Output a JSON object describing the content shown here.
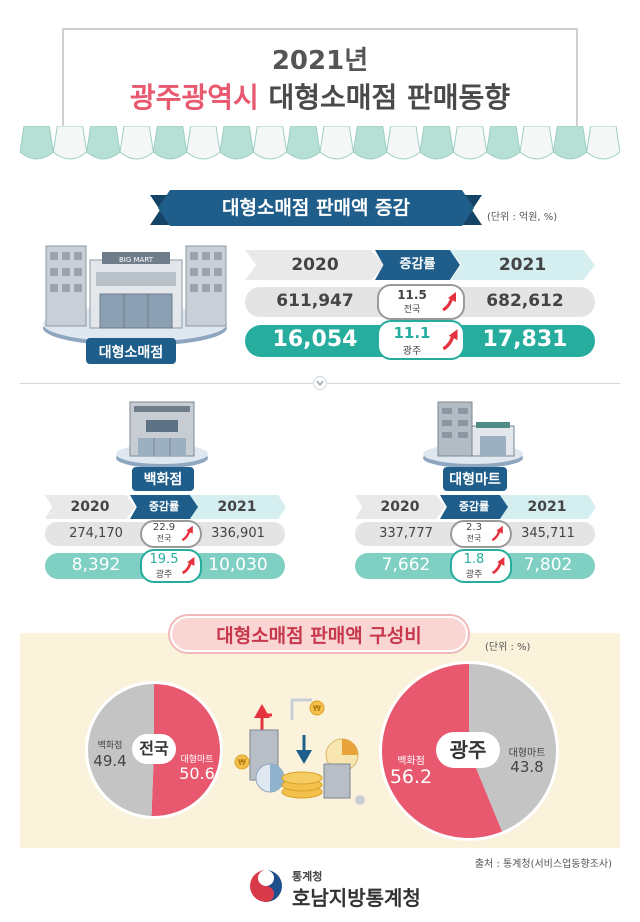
{
  "title": {
    "line1": "2021년",
    "region": "광주광역시",
    "rest": "대형소매점 판매동향"
  },
  "section1": {
    "header": "대형소매점 판매액 증감",
    "unit": "(단위 : 억원, %)",
    "building_label": "대형소매점",
    "building_sign": "BIG MART",
    "col_2020": "2020",
    "col_rate": "증감률",
    "col_2021": "2021",
    "national": {
      "v2020": "611,947",
      "rate": "11.5",
      "label": "전국",
      "v2021": "682,612"
    },
    "gwangju": {
      "v2020": "16,054",
      "rate": "11.1",
      "label": "광주",
      "v2021": "17,831"
    }
  },
  "dept_store": {
    "label": "백화점",
    "col_2020": "2020",
    "col_rate": "증감률",
    "col_2021": "2021",
    "national": {
      "v2020": "274,170",
      "rate": "22.9",
      "label": "전국",
      "v2021": "336,901"
    },
    "gwangju": {
      "v2020": "8,392",
      "rate": "19.5",
      "label": "광주",
      "v2021": "10,030"
    }
  },
  "hypermarket": {
    "label": "대형마트",
    "col_2020": "2020",
    "col_rate": "증감률",
    "col_2021": "2021",
    "national": {
      "v2020": "337,777",
      "rate": "2.3",
      "label": "전국",
      "v2021": "345,711"
    },
    "gwangju": {
      "v2020": "7,662",
      "rate": "1.8",
      "label": "광주",
      "v2021": "7,802"
    }
  },
  "composition": {
    "header": "대형소매점 판매액 구성비",
    "unit": "(단위 : %)",
    "national": {
      "center": "전국",
      "dept_label": "백화점",
      "dept_value": "49.4",
      "mart_label": "대형마트",
      "mart_value": "50.6"
    },
    "gwangju": {
      "center": "광주",
      "dept_label": "백화점",
      "dept_value": "56.2",
      "mart_label": "대형마트",
      "mart_value": "43.8"
    }
  },
  "chart_data": [
    {
      "type": "pie",
      "title": "",
      "categories": [
        "백화점",
        "대형마트"
      ],
      "values": [
        49.4,
        50.6
      ]
    },
    {
      "type": "pie",
      "title": "",
      "categories": [
        "백화점",
        "대형마트"
      ],
      "values": [
        56.2,
        43.8
      ]
    }
  ],
  "footer": {
    "source": "출처 : 통계청(서비스업동향조사)",
    "org_small": "통계청",
    "org_large": "호남지방통계청"
  },
  "colors": {
    "navy": "#1f5d8a",
    "teal": "#27ad9e",
    "pink": "#e8586e",
    "gray": "#c4c4c4",
    "cream": "#fbf2dc"
  }
}
